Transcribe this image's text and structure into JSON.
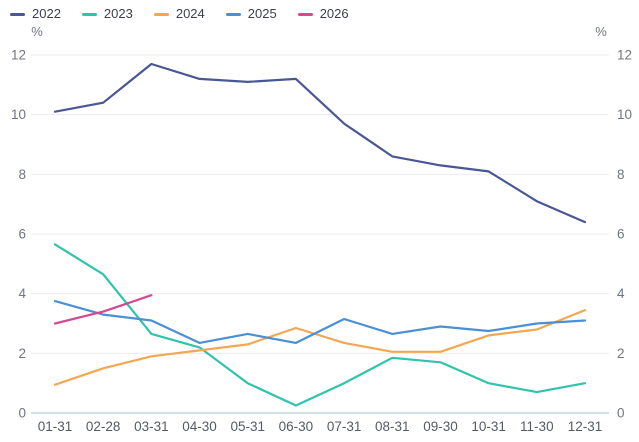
{
  "chart_data": {
    "type": "line",
    "title": "",
    "unit_label": "%",
    "categories": [
      "01-31",
      "02-28",
      "03-31",
      "04-30",
      "05-31",
      "06-30",
      "07-31",
      "08-31",
      "09-30",
      "10-31",
      "11-30",
      "12-31"
    ],
    "series": [
      {
        "name": "2022",
        "color": "#4a5795",
        "values": [
          10.1,
          10.4,
          11.7,
          11.2,
          11.1,
          11.2,
          9.7,
          8.6,
          8.3,
          8.1,
          7.1,
          6.4
        ]
      },
      {
        "name": "2023",
        "color": "#2fc4ab",
        "values": [
          5.65,
          4.65,
          2.65,
          2.2,
          1.0,
          0.25,
          1.0,
          1.85,
          1.7,
          1.0,
          0.7,
          1.0
        ]
      },
      {
        "name": "2024",
        "color": "#f3a753",
        "values": [
          0.95,
          1.5,
          1.9,
          2.1,
          2.3,
          2.85,
          2.35,
          2.05,
          2.05,
          2.6,
          2.8,
          3.45
        ]
      },
      {
        "name": "2025",
        "color": "#4b8fd4",
        "values": [
          3.75,
          3.3,
          3.1,
          2.35,
          2.65,
          2.35,
          3.15,
          2.65,
          2.9,
          2.75,
          3.0,
          3.1
        ]
      },
      {
        "name": "2026",
        "color": "#d6488f",
        "values": [
          3.0,
          3.4,
          3.95,
          null,
          null,
          null,
          null,
          null,
          null,
          null,
          null,
          null
        ]
      }
    ],
    "yticks": [
      0,
      2,
      4,
      6,
      8,
      10,
      12
    ],
    "ylim": [
      0,
      12
    ],
    "grid": true,
    "legend_position": "top-left",
    "colors": {
      "background": "#ffffff",
      "gridline": "#ededf1",
      "axis_line": "#c9d4e1",
      "tick_text": "#71757f",
      "xlabel_text": "#555a63",
      "legend_text": "#3f414a"
    }
  }
}
